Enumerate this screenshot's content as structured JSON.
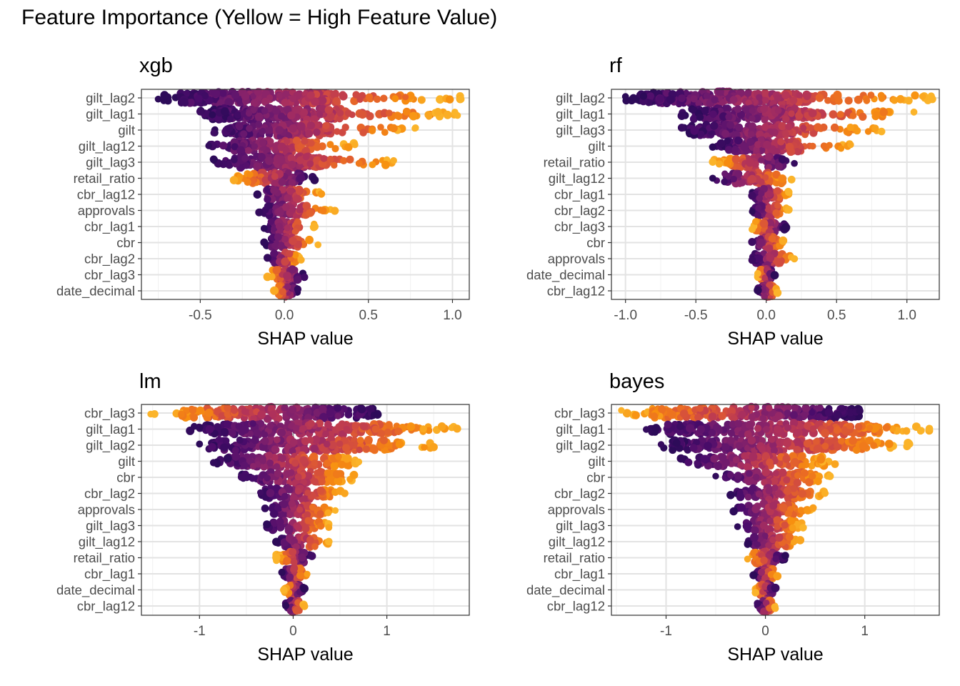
{
  "figure": {
    "title": "Feature Importance (Yellow = High Feature Value)"
  },
  "colors": {
    "palette": [
      "#2d0b59",
      "#4b0c6b",
      "#6d1a6e",
      "#8f2569",
      "#b1325a",
      "#d24b40",
      "#ea6b24",
      "#f78f0f",
      "#fbb42a"
    ],
    "grid_major": "#e3e3e3",
    "grid_minor": "#f2f2f2",
    "zero_line": "#999999",
    "border": "#333333"
  },
  "chart_data": [
    {
      "type": "scatter",
      "name": "xgb",
      "title": "xgb",
      "xlabel": "SHAP value",
      "ylabel": "",
      "xlim": [
        -0.85,
        1.1
      ],
      "xticks": [
        -0.5,
        0.0,
        0.5,
        1.0
      ],
      "xtick_labels": [
        "-0.5",
        "0.0",
        "0.5",
        "1.0"
      ],
      "grid": true,
      "zero_line": true,
      "features": [
        {
          "name": "gilt_lag2",
          "min": -0.75,
          "max": 1.05,
          "core_low": -0.62,
          "core_high": 0.32
        },
        {
          "name": "gilt_lag1",
          "min": -0.5,
          "max": 1.03,
          "core_low": -0.45,
          "core_high": 0.35
        },
        {
          "name": "gilt",
          "min": -0.42,
          "max": 0.78,
          "core_low": -0.35,
          "core_high": 0.28
        },
        {
          "name": "gilt_lag12",
          "min": -0.45,
          "max": 0.42,
          "core_low": -0.3,
          "core_high": 0.2
        },
        {
          "name": "gilt_lag3",
          "min": -0.42,
          "max": 0.65,
          "core_low": -0.3,
          "core_high": 0.25
        },
        {
          "name": "retail_ratio",
          "min": -0.3,
          "max": 0.18,
          "core_low": -0.22,
          "core_high": 0.1
        },
        {
          "name": "cbr_lag12",
          "min": -0.16,
          "max": 0.22,
          "core_low": -0.12,
          "core_high": 0.1
        },
        {
          "name": "approvals",
          "min": -0.15,
          "max": 0.3,
          "core_low": -0.12,
          "core_high": 0.15
        },
        {
          "name": "cbr_lag1",
          "min": -0.12,
          "max": 0.18,
          "core_low": -0.08,
          "core_high": 0.08
        },
        {
          "name": "cbr",
          "min": -0.12,
          "max": 0.2,
          "core_low": -0.08,
          "core_high": 0.08
        },
        {
          "name": "cbr_lag2",
          "min": -0.1,
          "max": 0.1,
          "core_low": -0.07,
          "core_high": 0.07
        },
        {
          "name": "cbr_lag3",
          "min": -0.1,
          "max": 0.12,
          "core_low": -0.07,
          "core_high": 0.08
        },
        {
          "name": "date_decimal",
          "min": -0.06,
          "max": 0.08,
          "core_low": -0.04,
          "core_high": 0.05
        }
      ]
    },
    {
      "type": "scatter",
      "name": "rf",
      "title": "rf",
      "xlabel": "SHAP value",
      "ylabel": "",
      "xlim": [
        -1.1,
        1.23
      ],
      "xticks": [
        -1.0,
        -0.5,
        0.0,
        0.5,
        1.0
      ],
      "xtick_labels": [
        "-1.0",
        "-0.5",
        "0.0",
        "0.5",
        "1.0"
      ],
      "grid": true,
      "zero_line": true,
      "features": [
        {
          "name": "gilt_lag2",
          "min": -1.0,
          "max": 1.18,
          "core_low": -0.9,
          "core_high": 0.3
        },
        {
          "name": "gilt_lag1",
          "min": -0.6,
          "max": 1.05,
          "core_low": -0.55,
          "core_high": 0.35
        },
        {
          "name": "gilt_lag3",
          "min": -0.6,
          "max": 0.82,
          "core_low": -0.55,
          "core_high": 0.3
        },
        {
          "name": "gilt",
          "min": -0.38,
          "max": 0.6,
          "core_low": -0.3,
          "core_high": 0.25
        },
        {
          "name": "retail_ratio",
          "min": -0.38,
          "max": 0.2,
          "core_low": -0.3,
          "core_high": 0.12
        },
        {
          "name": "gilt_lag12",
          "min": -0.38,
          "max": 0.18,
          "core_low": -0.3,
          "core_high": 0.12
        },
        {
          "name": "cbr_lag1",
          "min": -0.1,
          "max": 0.16,
          "core_low": -0.08,
          "core_high": 0.1
        },
        {
          "name": "cbr_lag2",
          "min": -0.1,
          "max": 0.16,
          "core_low": -0.08,
          "core_high": 0.1
        },
        {
          "name": "cbr_lag3",
          "min": -0.1,
          "max": 0.14,
          "core_low": -0.08,
          "core_high": 0.08
        },
        {
          "name": "cbr",
          "min": -0.1,
          "max": 0.12,
          "core_low": -0.07,
          "core_high": 0.08
        },
        {
          "name": "approvals",
          "min": -0.1,
          "max": 0.2,
          "core_low": -0.08,
          "core_high": 0.12
        },
        {
          "name": "date_decimal",
          "min": -0.06,
          "max": 0.06,
          "core_low": -0.04,
          "core_high": 0.04
        },
        {
          "name": "cbr_lag12",
          "min": -0.06,
          "max": 0.08,
          "core_low": -0.04,
          "core_high": 0.05
        }
      ]
    },
    {
      "type": "scatter",
      "name": "lm",
      "title": "lm",
      "xlabel": "SHAP value",
      "ylabel": "",
      "xlim": [
        -1.62,
        1.88
      ],
      "xticks": [
        -1,
        0,
        1
      ],
      "xtick_labels": [
        "-1",
        "0",
        "1"
      ],
      "grid": true,
      "zero_line": true,
      "features": [
        {
          "name": "cbr_lag3",
          "min": -1.52,
          "max": 0.9,
          "core_low": -1.2,
          "core_high": 0.9
        },
        {
          "name": "gilt_lag1",
          "min": -1.1,
          "max": 1.75,
          "core_low": -0.95,
          "core_high": 1.1
        },
        {
          "name": "gilt_lag2",
          "min": -1.0,
          "max": 1.5,
          "core_low": -0.9,
          "core_high": 1.05
        },
        {
          "name": "gilt",
          "min": -0.85,
          "max": 0.7,
          "core_low": -0.7,
          "core_high": 0.6
        },
        {
          "name": "cbr",
          "min": -0.55,
          "max": 0.65,
          "core_low": -0.35,
          "core_high": 0.55
        },
        {
          "name": "cbr_lag2",
          "min": -0.35,
          "max": 0.55,
          "core_low": -0.3,
          "core_high": 0.45
        },
        {
          "name": "approvals",
          "min": -0.3,
          "max": 0.45,
          "core_low": -0.25,
          "core_high": 0.4
        },
        {
          "name": "gilt_lag3",
          "min": -0.28,
          "max": 0.38,
          "core_low": -0.22,
          "core_high": 0.3
        },
        {
          "name": "gilt_lag12",
          "min": -0.18,
          "max": 0.38,
          "core_low": -0.15,
          "core_high": 0.25
        },
        {
          "name": "retail_ratio",
          "min": -0.18,
          "max": 0.2,
          "core_low": -0.12,
          "core_high": 0.12
        },
        {
          "name": "cbr_lag1",
          "min": -0.12,
          "max": 0.15,
          "core_low": -0.08,
          "core_high": 0.1
        },
        {
          "name": "date_decimal",
          "min": -0.1,
          "max": 0.12,
          "core_low": -0.06,
          "core_high": 0.08
        },
        {
          "name": "cbr_lag12",
          "min": -0.08,
          "max": 0.12,
          "core_low": -0.05,
          "core_high": 0.08
        }
      ]
    },
    {
      "type": "scatter",
      "name": "bayes",
      "title": "bayes",
      "xlabel": "SHAP value",
      "ylabel": "",
      "xlim": [
        -1.55,
        1.75
      ],
      "xticks": [
        -1,
        0,
        1
      ],
      "xtick_labels": [
        "-1",
        "0",
        "1"
      ],
      "grid": true,
      "zero_line": true,
      "features": [
        {
          "name": "cbr_lag3",
          "min": -1.45,
          "max": 0.95,
          "core_low": -1.15,
          "core_high": 0.95
        },
        {
          "name": "gilt_lag1",
          "min": -1.2,
          "max": 1.65,
          "core_low": -1.0,
          "core_high": 1.15
        },
        {
          "name": "gilt_lag2",
          "min": -1.05,
          "max": 1.45,
          "core_low": -0.95,
          "core_high": 1.05
        },
        {
          "name": "gilt",
          "min": -0.85,
          "max": 0.7,
          "core_low": -0.7,
          "core_high": 0.6
        },
        {
          "name": "cbr",
          "min": -0.5,
          "max": 0.65,
          "core_low": -0.3,
          "core_high": 0.55
        },
        {
          "name": "cbr_lag2",
          "min": -0.35,
          "max": 0.6,
          "core_low": -0.3,
          "core_high": 0.45
        },
        {
          "name": "approvals",
          "min": -0.32,
          "max": 0.48,
          "core_low": -0.25,
          "core_high": 0.4
        },
        {
          "name": "gilt_lag3",
          "min": -0.28,
          "max": 0.38,
          "core_low": -0.22,
          "core_high": 0.3
        },
        {
          "name": "gilt_lag12",
          "min": -0.18,
          "max": 0.35,
          "core_low": -0.15,
          "core_high": 0.25
        },
        {
          "name": "retail_ratio",
          "min": -0.18,
          "max": 0.2,
          "core_low": -0.12,
          "core_high": 0.12
        },
        {
          "name": "cbr_lag1",
          "min": -0.12,
          "max": 0.12,
          "core_low": -0.08,
          "core_high": 0.08
        },
        {
          "name": "date_decimal",
          "min": -0.1,
          "max": 0.1,
          "core_low": -0.06,
          "core_high": 0.07
        },
        {
          "name": "cbr_lag12",
          "min": -0.08,
          "max": 0.1,
          "core_low": -0.05,
          "core_high": 0.07
        }
      ]
    }
  ]
}
